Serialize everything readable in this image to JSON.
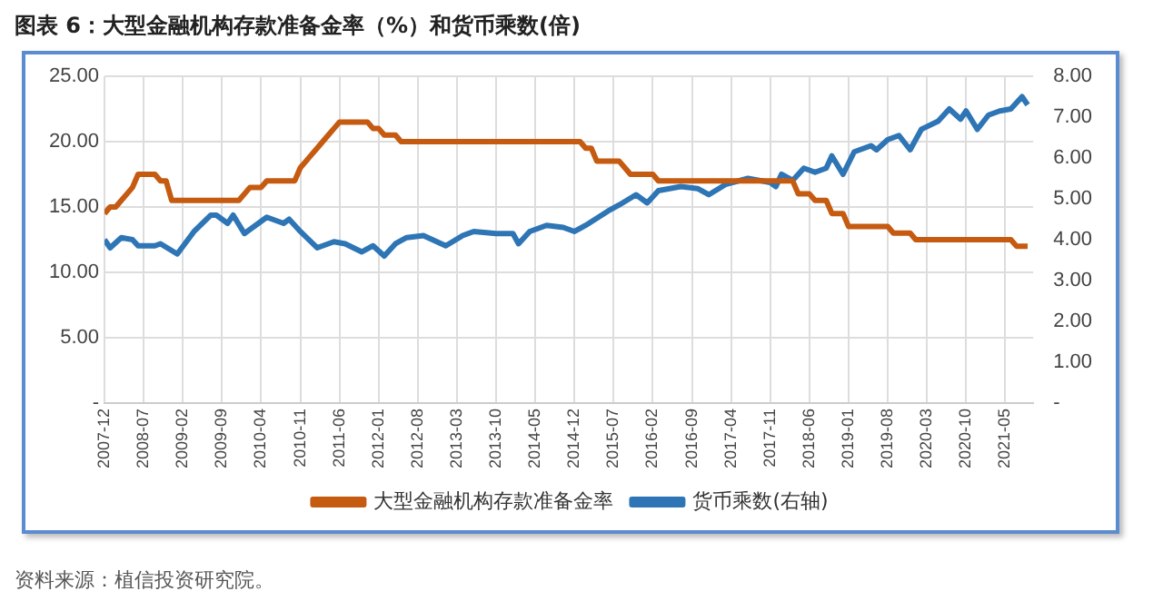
{
  "chart_data": {
    "type": "line",
    "title": "图表 6：大型金融机构存款准备金率（%）和货币乘数(倍)",
    "annotations": [
      "资料来源：植信投资研究院。"
    ],
    "xlim": [
      "2007-12",
      "2021-10"
    ],
    "xticks": [
      "2007-12",
      "2008-07",
      "2009-02",
      "2009-09",
      "2010-04",
      "2010-11",
      "2011-06",
      "2012-01",
      "2012-08",
      "2013-03",
      "2013-10",
      "2014-05",
      "2014-12",
      "2015-07",
      "2016-02",
      "2016-09",
      "2017-04",
      "2017-11",
      "2018-06",
      "2019-01",
      "2019-08",
      "2020-03",
      "2020-10",
      "2021-05"
    ],
    "ylim": [
      0,
      25
    ],
    "yticks": [
      {
        "value": 0,
        "label": "-"
      },
      {
        "value": 5,
        "label": "5.00"
      },
      {
        "value": 10,
        "label": "10.00"
      },
      {
        "value": 15,
        "label": "15.00"
      },
      {
        "value": 20,
        "label": "20.00"
      },
      {
        "value": 25,
        "label": "25.00"
      }
    ],
    "y2lim": [
      0,
      8
    ],
    "y2ticks": [
      {
        "value": 0,
        "label": "-"
      },
      {
        "value": 1,
        "label": "1.00"
      },
      {
        "value": 2,
        "label": "2.00"
      },
      {
        "value": 3,
        "label": "3.00"
      },
      {
        "value": 4,
        "label": "4.00"
      },
      {
        "value": 5,
        "label": "5.00"
      },
      {
        "value": 6,
        "label": "6.00"
      },
      {
        "value": 7,
        "label": "7.00"
      },
      {
        "value": 8,
        "label": "8.00"
      }
    ],
    "grid": true,
    "legend": "bottom",
    "marker": "none",
    "line_style": "solid",
    "series": [
      {
        "name": "大型金融机构存款准备金率",
        "color": "#c55a11",
        "x": [
          "2007-12",
          "2008-01",
          "2008-02",
          "2008-03",
          "2008-04",
          "2008-05",
          "2008-06",
          "2008-09",
          "2008-10",
          "2008-11",
          "2008-12",
          "2009-12",
          "2010-01",
          "2010-02",
          "2010-04",
          "2010-05",
          "2010-10",
          "2010-11",
          "2010-12",
          "2011-01",
          "2011-02",
          "2011-03",
          "2011-04",
          "2011-05",
          "2011-06",
          "2011-11",
          "2011-12",
          "2012-01",
          "2012-02",
          "2012-04",
          "2012-05",
          "2015-01",
          "2015-02",
          "2015-03",
          "2015-04",
          "2015-08",
          "2015-09",
          "2015-10",
          "2016-02",
          "2016-03",
          "2018-03",
          "2018-04",
          "2018-06",
          "2018-07",
          "2018-09",
          "2018-10",
          "2018-12",
          "2019-01",
          "2019-08",
          "2019-09",
          "2019-12",
          "2020-01",
          "2021-06",
          "2021-07",
          "2021-09"
        ],
        "values": [
          14.5,
          15,
          15,
          15.5,
          16,
          16.5,
          17.5,
          17.5,
          17,
          17,
          15.5,
          15.5,
          16,
          16.5,
          16.5,
          17,
          17,
          18,
          18.5,
          19,
          19.5,
          20,
          20.5,
          21,
          21.5,
          21.5,
          21,
          21,
          20.5,
          20.5,
          20,
          20,
          19.5,
          19.5,
          18.5,
          18.5,
          18,
          17.5,
          17.5,
          17,
          17,
          16,
          16,
          15.5,
          15.5,
          14.5,
          14.5,
          13.5,
          13.5,
          13,
          13,
          12.5,
          12.5,
          12,
          12
        ]
      },
      {
        "name": "货币乘数(右轴)",
        "color": "#2e75b6",
        "axis": "y2",
        "x": [
          "2007-12",
          "2008-01",
          "2008-03",
          "2008-05",
          "2008-06",
          "2008-09",
          "2008-10",
          "2009-01",
          "2009-04",
          "2009-07",
          "2009-08",
          "2009-10",
          "2009-11",
          "2010-01",
          "2010-03",
          "2010-05",
          "2010-08",
          "2010-09",
          "2010-11",
          "2011-02",
          "2011-05",
          "2011-07",
          "2011-10",
          "2011-12",
          "2012-02",
          "2012-04",
          "2012-06",
          "2012-09",
          "2013-01",
          "2013-04",
          "2013-06",
          "2013-10",
          "2014-01",
          "2014-02",
          "2014-04",
          "2014-07",
          "2014-10",
          "2014-12",
          "2015-02",
          "2015-06",
          "2015-08",
          "2015-11",
          "2016-01",
          "2016-03",
          "2016-07",
          "2016-10",
          "2016-12",
          "2017-03",
          "2017-07",
          "2017-11",
          "2017-12",
          "2018-01",
          "2018-03",
          "2018-05",
          "2018-07",
          "2018-09",
          "2018-10",
          "2018-12",
          "2019-02",
          "2019-05",
          "2019-06",
          "2019-08",
          "2019-10",
          "2019-12",
          "2020-02",
          "2020-05",
          "2020-07",
          "2020-09",
          "2020-10",
          "2020-12",
          "2021-02",
          "2021-04",
          "2021-06",
          "2021-08",
          "2021-09"
        ],
        "values": [
          4.0,
          3.8,
          4.05,
          4.0,
          3.85,
          3.85,
          3.9,
          3.65,
          4.2,
          4.6,
          4.6,
          4.4,
          4.6,
          4.15,
          4.35,
          4.55,
          4.4,
          4.5,
          4.2,
          3.8,
          3.95,
          3.9,
          3.7,
          3.85,
          3.6,
          3.9,
          4.05,
          4.1,
          3.85,
          4.1,
          4.2,
          4.15,
          4.15,
          3.9,
          4.2,
          4.35,
          4.3,
          4.2,
          4.35,
          4.7,
          4.85,
          5.1,
          4.9,
          5.2,
          5.3,
          5.25,
          5.1,
          5.35,
          5.5,
          5.4,
          5.3,
          5.6,
          5.45,
          5.75,
          5.65,
          5.75,
          6.05,
          5.6,
          6.15,
          6.3,
          6.2,
          6.45,
          6.55,
          6.2,
          6.7,
          6.9,
          7.2,
          6.95,
          7.15,
          6.7,
          7.05,
          7.15,
          7.2,
          7.5,
          7.3
        ]
      }
    ]
  }
}
